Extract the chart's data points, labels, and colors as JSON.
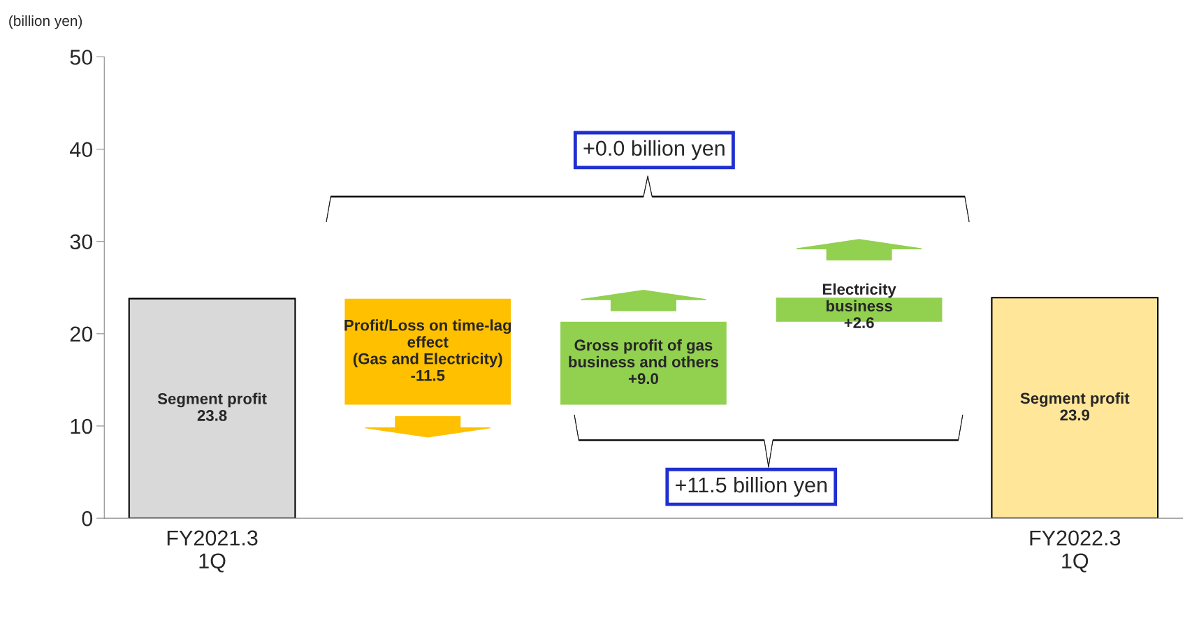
{
  "chart_data": {
    "type": "bar",
    "ylabel": "(billion yen)",
    "categories": [
      "FY2021.3\n1Q",
      null,
      null,
      null,
      "FY2022.3\n1Q"
    ],
    "values": [
      23.8,
      -11.5,
      9.0,
      2.6,
      23.9
    ],
    "base": [
      0,
      23.8,
      12.3,
      21.3,
      0
    ],
    "colors": [
      "#d9d9d9",
      "#ffc000",
      "#92d050",
      "#92d050",
      "#ffe699"
    ],
    "value_labels": [
      "Segment profit\n23.8",
      "Profit/Loss on time-lag\neffect\n(Gas and Electricity)\n-11.5",
      "Gross profit of gas\nbusiness and others\n+9.0",
      "Electricity\nbusiness\n+2.6",
      "Segment profit\n23.9"
    ],
    "ylim": [
      0,
      50
    ],
    "yticks": [
      0,
      10,
      20,
      30,
      40,
      50
    ],
    "grid": false,
    "legend": false,
    "annotations": [
      "+0.0 billion yen",
      "+11.5 billion yen"
    ]
  }
}
